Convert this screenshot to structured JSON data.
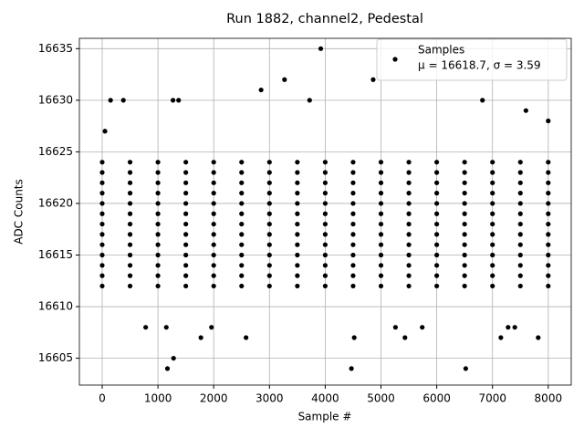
{
  "chart_data": {
    "type": "scatter",
    "title": "Run 1882, channel2, Pedestal",
    "x_label": "Sample #",
    "y_label": "ADC Counts",
    "xlim": [
      -409,
      8412
    ],
    "ylim": [
      16602.4,
      16636.0
    ],
    "xticks": [
      0,
      1000,
      2000,
      3000,
      4000,
      5000,
      6000,
      7000,
      8000
    ],
    "yticks": [
      16605,
      16610,
      16615,
      16620,
      16625,
      16630,
      16635
    ],
    "grid": true,
    "legend_position": "upper right",
    "annotation": "μ = 16618.7, σ = 3.59",
    "series": [
      {
        "name": "Samples",
        "color": "#000000",
        "x": [
          0,
          500,
          1000,
          1500,
          2000,
          2500,
          3000,
          3500,
          4000,
          4500,
          5000,
          5500,
          6000,
          6500,
          7000,
          7500,
          8000,
          0,
          500,
          1000,
          1500,
          2000,
          2500,
          3000,
          3500,
          4000,
          4500,
          5000,
          5500,
          6000,
          6500,
          7000,
          7500,
          8000,
          0,
          500,
          1000,
          1500,
          2000,
          2500,
          3000,
          3500,
          4000,
          4500,
          5000,
          5500,
          6000,
          6500,
          7000,
          7500,
          8000,
          0,
          500,
          1000,
          1500,
          2000,
          2500,
          3000,
          3500,
          4000,
          4500,
          5000,
          5500,
          6000,
          6500,
          7000,
          7500,
          8000,
          0,
          500,
          1000,
          1500,
          2000,
          2500,
          3000,
          3500,
          4000,
          4500,
          5000,
          5500,
          6000,
          6500,
          7000,
          7500,
          8000,
          0,
          500,
          1000,
          1500,
          2000,
          2500,
          3000,
          3500,
          4000,
          4500,
          5000,
          5500,
          6000,
          6500,
          7000,
          7500,
          8000,
          0,
          500,
          1000,
          1500,
          2000,
          2500,
          3000,
          3500,
          4000,
          4500,
          5000,
          5500,
          6000,
          6500,
          7000,
          7500,
          8000,
          0,
          500,
          1000,
          1500,
          2000,
          2500,
          3000,
          3500,
          4000,
          4500,
          5000,
          5500,
          6000,
          6500,
          7000,
          7500,
          8000,
          0,
          500,
          1000,
          1500,
          2000,
          2500,
          3000,
          3500,
          4000,
          4500,
          5000,
          5500,
          6000,
          6500,
          7000,
          7500,
          8000,
          0,
          500,
          1000,
          1500,
          2000,
          2500,
          3000,
          3500,
          4000,
          4500,
          5000,
          5500,
          6000,
          6500,
          7000,
          7500,
          8000,
          0,
          500,
          1000,
          1500,
          2000,
          2500,
          3000,
          3500,
          4000,
          4500,
          5000,
          5500,
          6000,
          6500,
          7000,
          7500,
          8000,
          0,
          500,
          1000,
          1500,
          2000,
          2500,
          3000,
          3500,
          4000,
          4500,
          5000,
          5500,
          6000,
          6500,
          7000,
          7500,
          8000,
          0,
          500,
          1000,
          1500,
          2000,
          2500,
          3000,
          3500,
          4000,
          4500,
          5000,
          5500,
          6000,
          6500,
          7000,
          7500,
          8000,
          1170,
          1280,
          4470,
          6520,
          3920,
          3270,
          4860,
          2850,
          150,
          380,
          1270,
          1370,
          3720,
          6820,
          1770,
          2580,
          4520,
          5430,
          7150,
          7820,
          1960,
          5260,
          5740,
          7280,
          7400,
          1150,
          780,
          8000,
          7600,
          50
        ],
        "values": [
          16612,
          16612,
          16612,
          16612,
          16612,
          16612,
          16612,
          16612,
          16612,
          16612,
          16612,
          16612,
          16612,
          16612,
          16612,
          16612,
          16612,
          16613,
          16613,
          16613,
          16613,
          16613,
          16613,
          16613,
          16613,
          16613,
          16613,
          16613,
          16613,
          16613,
          16613,
          16613,
          16613,
          16613,
          16614,
          16614,
          16614,
          16614,
          16614,
          16614,
          16614,
          16614,
          16614,
          16614,
          16614,
          16614,
          16614,
          16614,
          16614,
          16614,
          16614,
          16615,
          16615,
          16615,
          16615,
          16615,
          16615,
          16615,
          16615,
          16615,
          16615,
          16615,
          16615,
          16615,
          16615,
          16615,
          16615,
          16615,
          16616,
          16616,
          16616,
          16616,
          16616,
          16616,
          16616,
          16616,
          16616,
          16616,
          16616,
          16616,
          16616,
          16616,
          16616,
          16616,
          16616,
          16617,
          16617,
          16617,
          16617,
          16617,
          16617,
          16617,
          16617,
          16617,
          16617,
          16617,
          16617,
          16617,
          16617,
          16617,
          16617,
          16617,
          16618,
          16618,
          16618,
          16618,
          16618,
          16618,
          16618,
          16618,
          16618,
          16618,
          16618,
          16618,
          16618,
          16618,
          16618,
          16618,
          16618,
          16619,
          16619,
          16619,
          16619,
          16619,
          16619,
          16619,
          16619,
          16619,
          16619,
          16619,
          16619,
          16619,
          16619,
          16619,
          16619,
          16619,
          16620,
          16620,
          16620,
          16620,
          16620,
          16620,
          16620,
          16620,
          16620,
          16620,
          16620,
          16620,
          16620,
          16620,
          16620,
          16620,
          16620,
          16621,
          16621,
          16621,
          16621,
          16621,
          16621,
          16621,
          16621,
          16621,
          16621,
          16621,
          16621,
          16621,
          16621,
          16621,
          16621,
          16621,
          16622,
          16622,
          16622,
          16622,
          16622,
          16622,
          16622,
          16622,
          16622,
          16622,
          16622,
          16622,
          16622,
          16622,
          16622,
          16622,
          16622,
          16623,
          16623,
          16623,
          16623,
          16623,
          16623,
          16623,
          16623,
          16623,
          16623,
          16623,
          16623,
          16623,
          16623,
          16623,
          16623,
          16623,
          16624,
          16624,
          16624,
          16624,
          16624,
          16624,
          16624,
          16624,
          16624,
          16624,
          16624,
          16624,
          16624,
          16624,
          16624,
          16624,
          16624,
          16604,
          16605,
          16604,
          16604,
          16635,
          16632,
          16632,
          16631,
          16630,
          16630,
          16630,
          16630,
          16630,
          16630,
          16607,
          16607,
          16607,
          16607,
          16607,
          16607,
          16608,
          16608,
          16608,
          16608,
          16608,
          16608,
          16608,
          16628,
          16629,
          16627
        ]
      }
    ]
  }
}
